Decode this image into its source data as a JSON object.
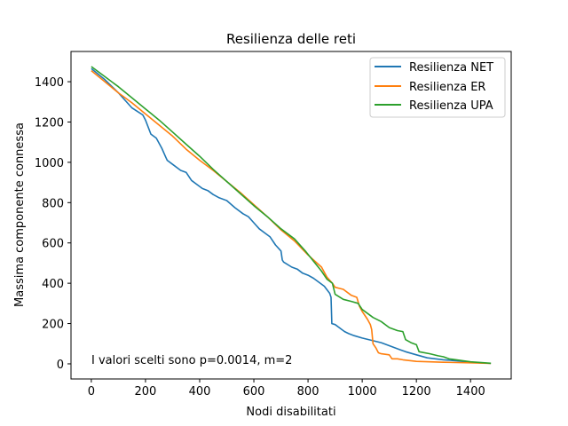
{
  "chart_data": {
    "type": "line",
    "title": "Resilienza delle reti",
    "xlabel": "Nodi disabilitati",
    "ylabel": "Massima componente connessa",
    "xlim": [
      -75,
      1550
    ],
    "ylim": [
      -75,
      1550
    ],
    "xticks": [
      0,
      200,
      400,
      600,
      800,
      1000,
      1200,
      1400
    ],
    "yticks": [
      0,
      200,
      400,
      600,
      800,
      1000,
      1200,
      1400
    ],
    "legend_position": "top-right",
    "annotation": "I valori scelti sono p=0.0014, m=2",
    "series": [
      {
        "name": "Resilienza NET",
        "color": "#1f77b4",
        "points": [
          [
            0,
            1465
          ],
          [
            50,
            1410
          ],
          [
            100,
            1345
          ],
          [
            150,
            1270
          ],
          [
            190,
            1235
          ],
          [
            200,
            1210
          ],
          [
            220,
            1140
          ],
          [
            240,
            1120
          ],
          [
            260,
            1070
          ],
          [
            270,
            1040
          ],
          [
            275,
            1025
          ],
          [
            280,
            1010
          ],
          [
            300,
            990
          ],
          [
            330,
            960
          ],
          [
            350,
            950
          ],
          [
            370,
            910
          ],
          [
            390,
            890
          ],
          [
            410,
            870
          ],
          [
            430,
            860
          ],
          [
            450,
            840
          ],
          [
            470,
            825
          ],
          [
            500,
            810
          ],
          [
            530,
            775
          ],
          [
            560,
            745
          ],
          [
            580,
            730
          ],
          [
            600,
            700
          ],
          [
            620,
            670
          ],
          [
            640,
            650
          ],
          [
            660,
            630
          ],
          [
            680,
            590
          ],
          [
            700,
            560
          ],
          [
            705,
            515
          ],
          [
            710,
            505
          ],
          [
            740,
            480
          ],
          [
            760,
            470
          ],
          [
            780,
            450
          ],
          [
            800,
            440
          ],
          [
            820,
            425
          ],
          [
            840,
            405
          ],
          [
            860,
            385
          ],
          [
            880,
            350
          ],
          [
            885,
            330
          ],
          [
            888,
            200
          ],
          [
            900,
            195
          ],
          [
            915,
            180
          ],
          [
            925,
            170
          ],
          [
            935,
            160
          ],
          [
            950,
            150
          ],
          [
            970,
            140
          ],
          [
            1000,
            128
          ],
          [
            1040,
            115
          ],
          [
            1070,
            105
          ],
          [
            1100,
            90
          ],
          [
            1140,
            70
          ],
          [
            1160,
            60
          ],
          [
            1200,
            45
          ],
          [
            1240,
            30
          ],
          [
            1300,
            20
          ],
          [
            1350,
            15
          ],
          [
            1400,
            8
          ],
          [
            1475,
            2
          ]
        ]
      },
      {
        "name": "Resilienza ER",
        "color": "#ff7f0e",
        "points": [
          [
            0,
            1455
          ],
          [
            50,
            1400
          ],
          [
            100,
            1345
          ],
          [
            150,
            1295
          ],
          [
            200,
            1240
          ],
          [
            250,
            1185
          ],
          [
            300,
            1130
          ],
          [
            350,
            1065
          ],
          [
            400,
            1010
          ],
          [
            450,
            960
          ],
          [
            500,
            905
          ],
          [
            550,
            850
          ],
          [
            600,
            790
          ],
          [
            650,
            730
          ],
          [
            700,
            665
          ],
          [
            750,
            610
          ],
          [
            800,
            540
          ],
          [
            850,
            480
          ],
          [
            870,
            430
          ],
          [
            890,
            400
          ],
          [
            900,
            380
          ],
          [
            930,
            370
          ],
          [
            960,
            340
          ],
          [
            980,
            330
          ],
          [
            990,
            285
          ],
          [
            1000,
            260
          ],
          [
            1010,
            240
          ],
          [
            1020,
            220
          ],
          [
            1030,
            195
          ],
          [
            1035,
            170
          ],
          [
            1040,
            100
          ],
          [
            1050,
            80
          ],
          [
            1060,
            55
          ],
          [
            1070,
            50
          ],
          [
            1100,
            45
          ],
          [
            1110,
            25
          ],
          [
            1130,
            25
          ],
          [
            1150,
            20
          ],
          [
            1200,
            12
          ],
          [
            1300,
            8
          ],
          [
            1400,
            5
          ],
          [
            1475,
            2
          ]
        ]
      },
      {
        "name": "Resilienza UPA",
        "color": "#2ca02c",
        "points": [
          [
            0,
            1475
          ],
          [
            50,
            1425
          ],
          [
            100,
            1375
          ],
          [
            150,
            1320
          ],
          [
            200,
            1265
          ],
          [
            250,
            1210
          ],
          [
            300,
            1150
          ],
          [
            350,
            1090
          ],
          [
            400,
            1030
          ],
          [
            450,
            965
          ],
          [
            500,
            905
          ],
          [
            550,
            845
          ],
          [
            600,
            785
          ],
          [
            650,
            730
          ],
          [
            700,
            670
          ],
          [
            750,
            620
          ],
          [
            790,
            560
          ],
          [
            820,
            510
          ],
          [
            850,
            460
          ],
          [
            870,
            420
          ],
          [
            890,
            400
          ],
          [
            900,
            345
          ],
          [
            930,
            320
          ],
          [
            960,
            310
          ],
          [
            985,
            300
          ],
          [
            1000,
            270
          ],
          [
            1020,
            250
          ],
          [
            1040,
            230
          ],
          [
            1070,
            210
          ],
          [
            1100,
            180
          ],
          [
            1130,
            165
          ],
          [
            1150,
            160
          ],
          [
            1160,
            120
          ],
          [
            1180,
            105
          ],
          [
            1200,
            95
          ],
          [
            1210,
            60
          ],
          [
            1250,
            50
          ],
          [
            1280,
            40
          ],
          [
            1300,
            35
          ],
          [
            1320,
            25
          ],
          [
            1400,
            10
          ],
          [
            1475,
            3
          ]
        ]
      }
    ]
  }
}
